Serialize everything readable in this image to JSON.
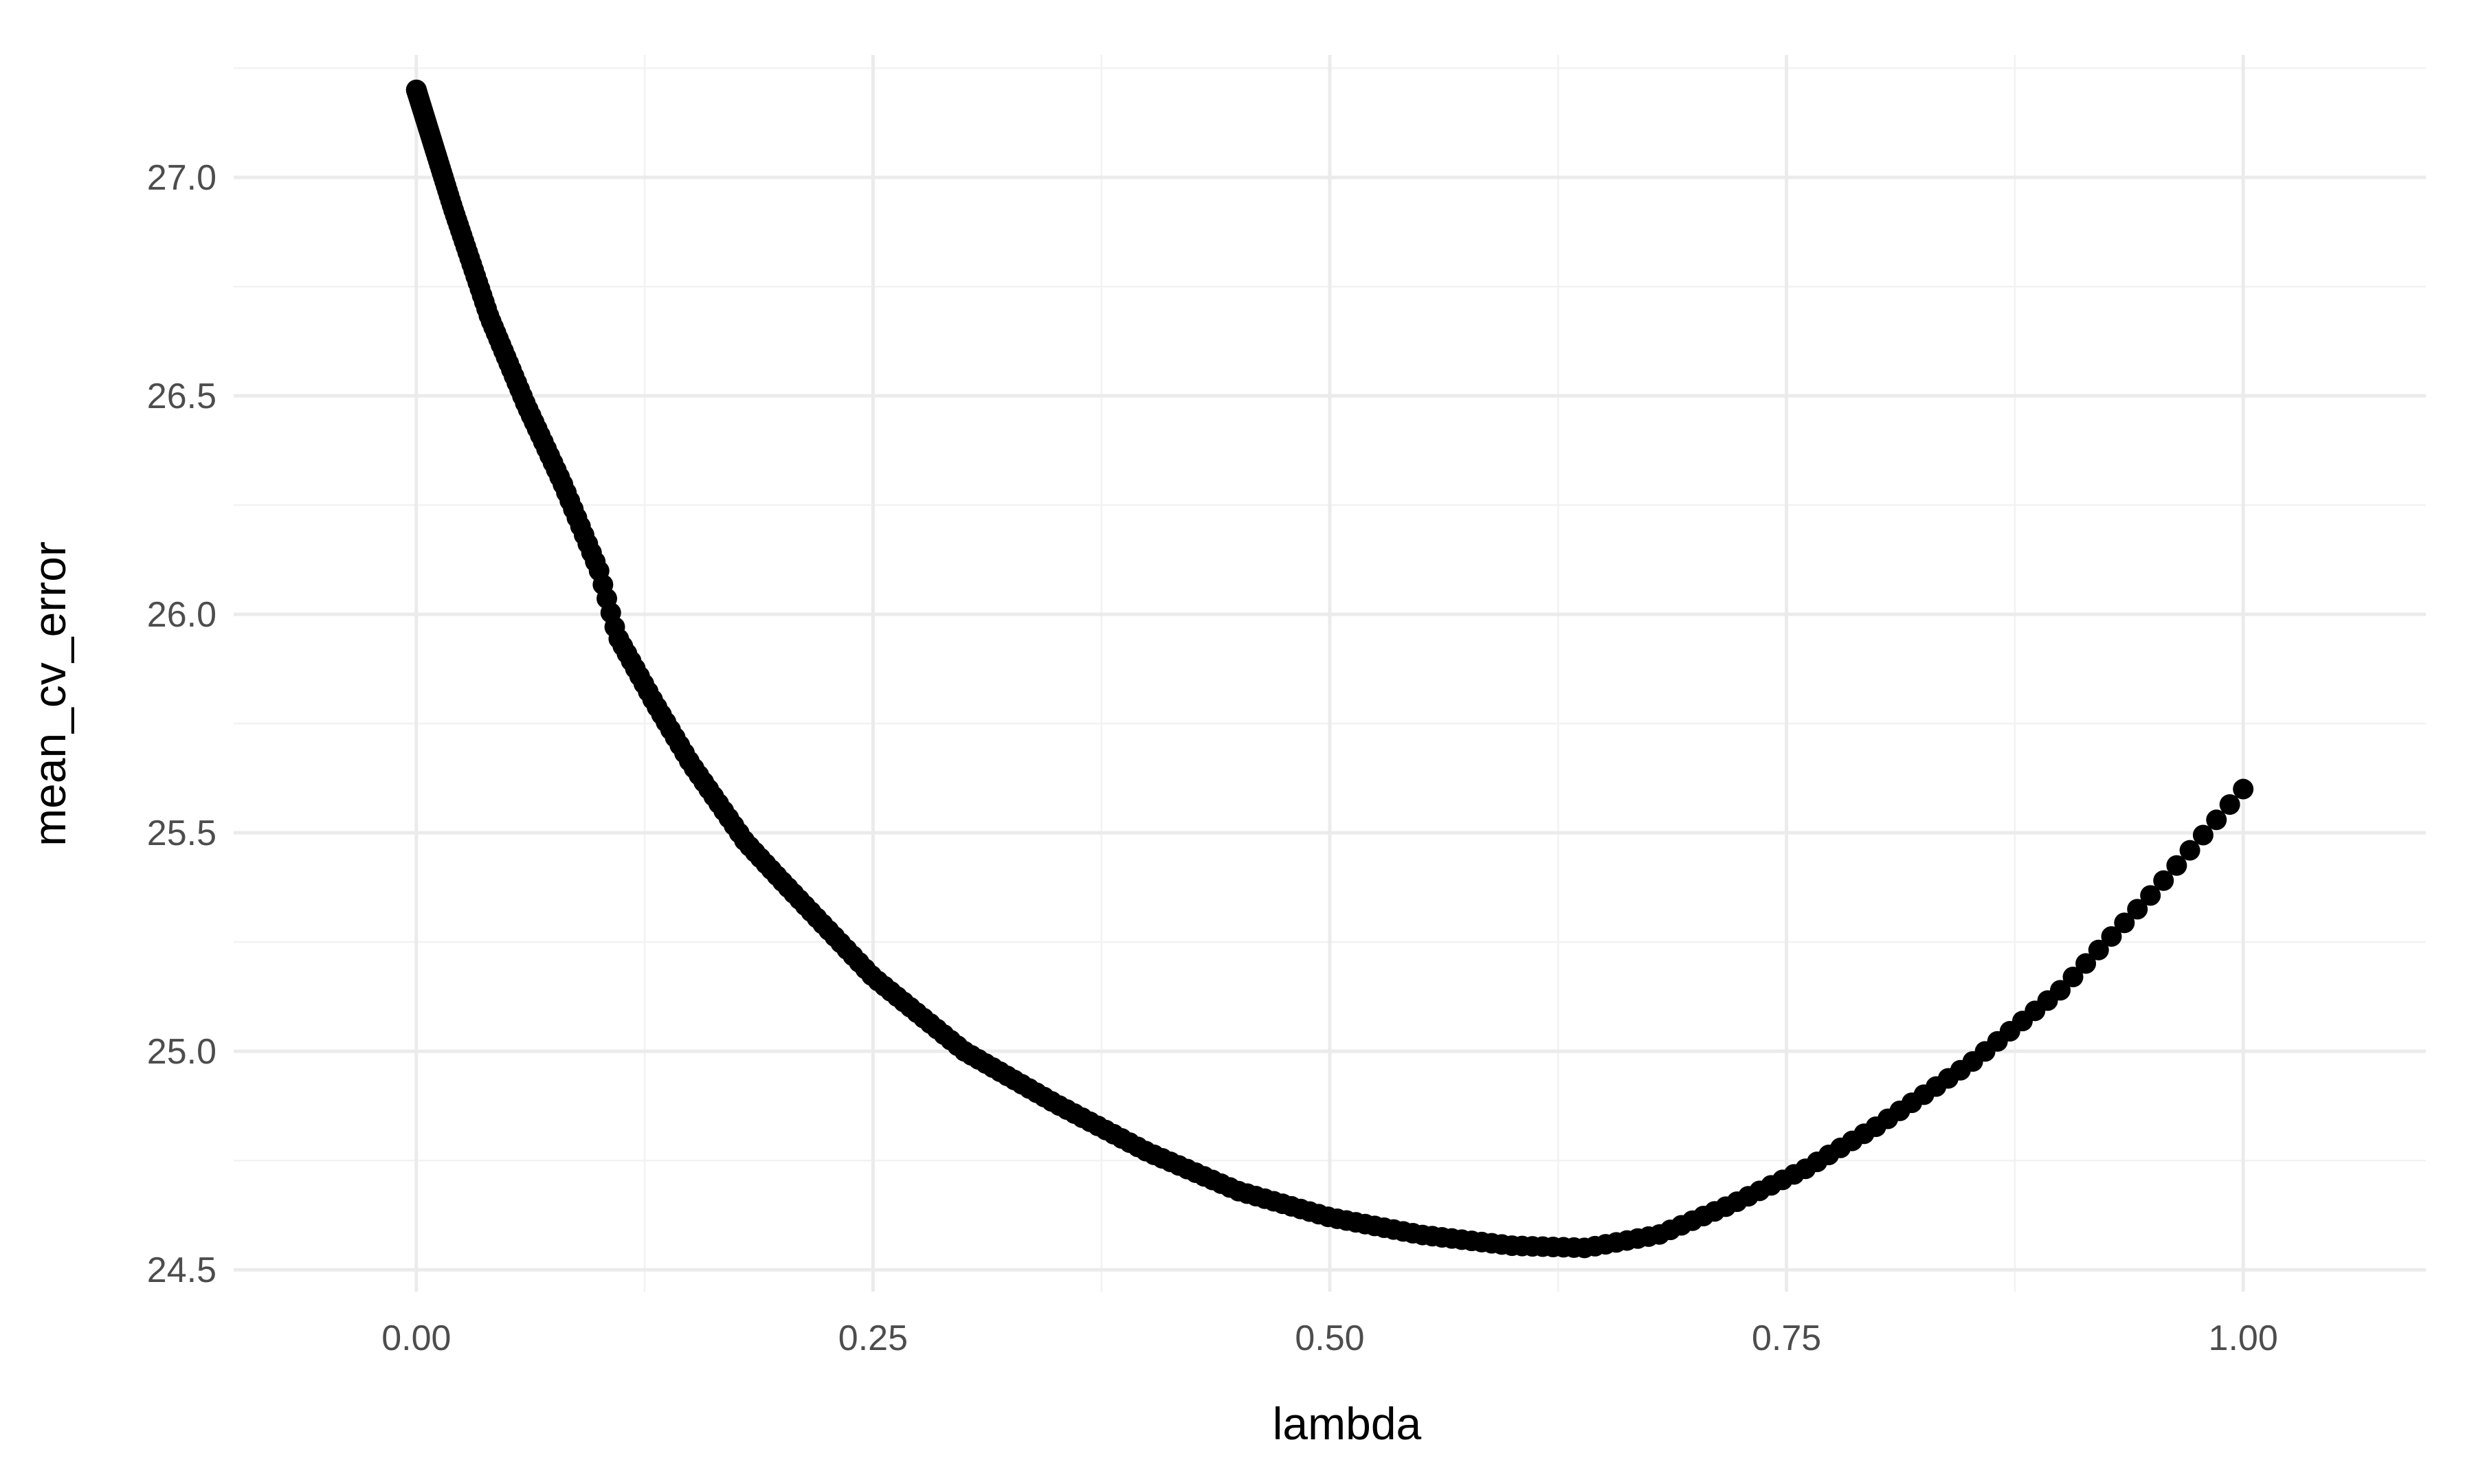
{
  "chart_data": {
    "type": "scatter",
    "title": "",
    "xlabel": "lambda",
    "ylabel": "mean_cv_error",
    "xlim": [
      -0.1,
      1.1
    ],
    "ylim": [
      24.45,
      27.28
    ],
    "x_ticks": [
      0.0,
      0.25,
      0.5,
      0.75,
      1.0
    ],
    "x_tick_labels": [
      "0.00",
      "0.25",
      "0.50",
      "0.75",
      "1.00"
    ],
    "y_ticks": [
      24.5,
      25.0,
      25.5,
      26.0,
      26.5,
      27.0
    ],
    "y_tick_labels": [
      "24.5",
      "25.0",
      "25.5",
      "26.0",
      "26.5",
      "27.0"
    ],
    "grid": true,
    "legend": "none",
    "point_color": "#000000",
    "series": [
      {
        "curve_knots": [
          [
            0.0,
            27.2
          ],
          [
            0.02,
            26.93
          ],
          [
            0.04,
            26.68
          ],
          [
            0.06,
            26.48
          ],
          [
            0.08,
            26.3
          ],
          [
            0.1,
            26.1
          ],
          [
            0.11,
            25.95
          ],
          [
            0.13,
            25.8
          ],
          [
            0.15,
            25.66
          ],
          [
            0.18,
            25.48
          ],
          [
            0.2,
            25.39
          ],
          [
            0.25,
            25.17
          ],
          [
            0.3,
            25.0
          ],
          [
            0.35,
            24.88
          ],
          [
            0.4,
            24.77
          ],
          [
            0.45,
            24.68
          ],
          [
            0.5,
            24.62
          ],
          [
            0.55,
            24.58
          ],
          [
            0.6,
            24.555
          ],
          [
            0.64,
            24.55
          ],
          [
            0.68,
            24.58
          ],
          [
            0.72,
            24.65
          ],
          [
            0.76,
            24.73
          ],
          [
            0.8,
            24.83
          ],
          [
            0.85,
            24.97
          ],
          [
            0.9,
            25.14
          ],
          [
            0.95,
            25.36
          ],
          [
            1.0,
            25.6
          ]
        ]
      }
    ]
  }
}
